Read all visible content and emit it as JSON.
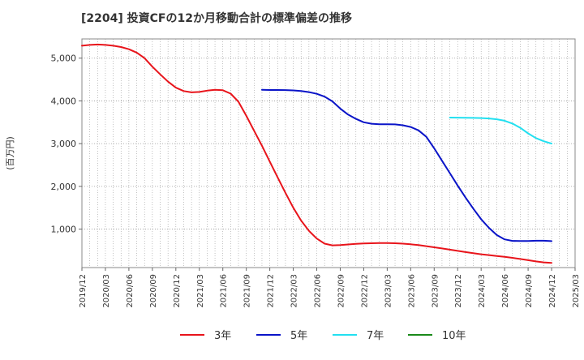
{
  "chart_data": {
    "type": "line",
    "title": "[2204]  投資CFの12か月移動合計の標準偏差の推移",
    "ylabel": "(百万円)",
    "xlabel": "",
    "ylim": [
      100,
      5450
    ],
    "yticks": [
      1000,
      2000,
      3000,
      4000,
      5000
    ],
    "ytick_labels": [
      "1,000",
      "2,000",
      "3,000",
      "4,000",
      "5,000"
    ],
    "xlim": [
      "2019-12",
      "2025-03"
    ],
    "xtick_labels": [
      "2019/12",
      "2020/03",
      "2020/06",
      "2020/09",
      "2020/12",
      "2021/03",
      "2021/06",
      "2021/09",
      "2021/12",
      "2022/03",
      "2022/06",
      "2022/09",
      "2022/12",
      "2023/03",
      "2023/06",
      "2023/09",
      "2023/12",
      "2024/03",
      "2024/06",
      "2024/09",
      "2024/12",
      "2025/03"
    ],
    "grid": true,
    "legend_position": "bottom",
    "series": [
      {
        "name": "3年",
        "color": "#e8141b",
        "points": [
          [
            "2019-12",
            5290
          ],
          [
            "2020-01",
            5310
          ],
          [
            "2020-02",
            5320
          ],
          [
            "2020-03",
            5310
          ],
          [
            "2020-04",
            5290
          ],
          [
            "2020-05",
            5260
          ],
          [
            "2020-06",
            5210
          ],
          [
            "2020-07",
            5130
          ],
          [
            "2020-08",
            5000
          ],
          [
            "2020-09",
            4800
          ],
          [
            "2020-10",
            4620
          ],
          [
            "2020-11",
            4450
          ],
          [
            "2020-12",
            4310
          ],
          [
            "2021-01",
            4230
          ],
          [
            "2021-02",
            4200
          ],
          [
            "2021-03",
            4210
          ],
          [
            "2021-04",
            4240
          ],
          [
            "2021-05",
            4260
          ],
          [
            "2021-06",
            4250
          ],
          [
            "2021-07",
            4170
          ],
          [
            "2021-08",
            3980
          ],
          [
            "2021-09",
            3650
          ],
          [
            "2021-10",
            3300
          ],
          [
            "2021-11",
            2950
          ],
          [
            "2021-12",
            2580
          ],
          [
            "2022-01",
            2210
          ],
          [
            "2022-02",
            1850
          ],
          [
            "2022-03",
            1500
          ],
          [
            "2022-04",
            1200
          ],
          [
            "2022-05",
            960
          ],
          [
            "2022-06",
            780
          ],
          [
            "2022-07",
            660
          ],
          [
            "2022-08",
            620
          ],
          [
            "2022-09",
            625
          ],
          [
            "2022-10",
            640
          ],
          [
            "2022-11",
            655
          ],
          [
            "2022-12",
            665
          ],
          [
            "2023-01",
            670
          ],
          [
            "2023-02",
            675
          ],
          [
            "2023-03",
            675
          ],
          [
            "2023-04",
            670
          ],
          [
            "2023-05",
            660
          ],
          [
            "2023-06",
            645
          ],
          [
            "2023-07",
            625
          ],
          [
            "2023-08",
            600
          ],
          [
            "2023-09",
            575
          ],
          [
            "2023-10",
            548
          ],
          [
            "2023-11",
            520
          ],
          [
            "2023-12",
            490
          ],
          [
            "2024-01",
            462
          ],
          [
            "2024-02",
            436
          ],
          [
            "2024-03",
            412
          ],
          [
            "2024-04",
            392
          ],
          [
            "2024-05",
            372
          ],
          [
            "2024-06",
            350
          ],
          [
            "2024-07",
            328
          ],
          [
            "2024-08",
            302
          ],
          [
            "2024-09",
            272
          ],
          [
            "2024-10",
            244
          ],
          [
            "2024-11",
            222
          ],
          [
            "2024-12",
            210
          ]
        ]
      },
      {
        "name": "5年",
        "color": "#0a14c8",
        "points": [
          [
            "2021-11",
            4260
          ],
          [
            "2021-12",
            4255
          ],
          [
            "2022-01",
            4255
          ],
          [
            "2022-02",
            4252
          ],
          [
            "2022-03",
            4245
          ],
          [
            "2022-04",
            4230
          ],
          [
            "2022-05",
            4205
          ],
          [
            "2022-06",
            4165
          ],
          [
            "2022-07",
            4100
          ],
          [
            "2022-08",
            3990
          ],
          [
            "2022-09",
            3820
          ],
          [
            "2022-10",
            3680
          ],
          [
            "2022-11",
            3580
          ],
          [
            "2022-12",
            3500
          ],
          [
            "2023-01",
            3465
          ],
          [
            "2023-02",
            3455
          ],
          [
            "2023-03",
            3455
          ],
          [
            "2023-04",
            3450
          ],
          [
            "2023-05",
            3430
          ],
          [
            "2023-06",
            3390
          ],
          [
            "2023-07",
            3310
          ],
          [
            "2023-08",
            3160
          ],
          [
            "2023-09",
            2890
          ],
          [
            "2023-10",
            2600
          ],
          [
            "2023-11",
            2310
          ],
          [
            "2023-12",
            2020
          ],
          [
            "2024-01",
            1740
          ],
          [
            "2024-02",
            1480
          ],
          [
            "2024-03",
            1230
          ],
          [
            "2024-04",
            1030
          ],
          [
            "2024-05",
            860
          ],
          [
            "2024-06",
            760
          ],
          [
            "2024-07",
            725
          ],
          [
            "2024-08",
            720
          ],
          [
            "2024-09",
            722
          ],
          [
            "2024-10",
            728
          ],
          [
            "2024-11",
            728
          ],
          [
            "2024-12",
            718
          ]
        ]
      },
      {
        "name": "7年",
        "color": "#22e0f0",
        "points": [
          [
            "2023-11",
            3610
          ],
          [
            "2023-12",
            3608
          ],
          [
            "2024-01",
            3605
          ],
          [
            "2024-02",
            3603
          ],
          [
            "2024-03",
            3598
          ],
          [
            "2024-04",
            3588
          ],
          [
            "2024-05",
            3570
          ],
          [
            "2024-06",
            3535
          ],
          [
            "2024-07",
            3470
          ],
          [
            "2024-08",
            3370
          ],
          [
            "2024-09",
            3240
          ],
          [
            "2024-10",
            3130
          ],
          [
            "2024-11",
            3055
          ],
          [
            "2024-12",
            3000
          ]
        ]
      },
      {
        "name": "10年",
        "color": "#1a8a1a",
        "points": []
      }
    ]
  }
}
